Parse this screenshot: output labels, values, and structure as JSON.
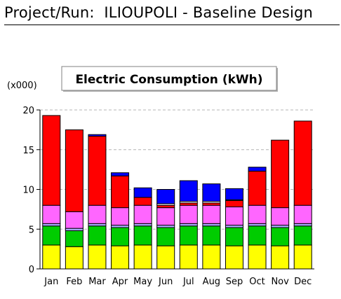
{
  "header": {
    "title": "Project/Run:  ILIOUPOLI - Baseline Design"
  },
  "chart_data": {
    "type": "bar",
    "stacked": true,
    "title": "Electric Consumption (kWh)",
    "unit_label": "(x000)",
    "xlabel": "",
    "ylabel": "",
    "ylim": [
      0,
      20
    ],
    "yticks": [
      0,
      5,
      10,
      15,
      20
    ],
    "grid": "horizontal dashed",
    "legend": "none",
    "categories": [
      "Jan",
      "Feb",
      "Mar",
      "Apr",
      "May",
      "Jun",
      "Jul",
      "Aug",
      "Sep",
      "Oct",
      "Nov",
      "Dec"
    ],
    "series": [
      {
        "color": "#ffff00",
        "values": [
          3.0,
          2.8,
          3.0,
          2.9,
          3.0,
          2.9,
          3.0,
          3.0,
          2.9,
          3.0,
          2.9,
          3.0
        ]
      },
      {
        "color": "#00cc00",
        "values": [
          2.4,
          2.0,
          2.4,
          2.3,
          2.4,
          2.3,
          2.4,
          2.4,
          2.3,
          2.4,
          2.3,
          2.4
        ]
      },
      {
        "color": "#aaaaff",
        "values": [
          0.3,
          0.3,
          0.3,
          0.3,
          0.3,
          0.3,
          0.3,
          0.3,
          0.3,
          0.3,
          0.3,
          0.3
        ]
      },
      {
        "color": "#ff66ff",
        "values": [
          2.3,
          2.1,
          2.3,
          2.2,
          2.3,
          2.2,
          2.3,
          2.3,
          2.3,
          2.3,
          2.2,
          2.3
        ]
      },
      {
        "color": "#ff0000",
        "values": [
          11.3,
          10.3,
          8.7,
          4.0,
          1.0,
          0.3,
          0.3,
          0.3,
          0.8,
          4.3,
          8.5,
          10.6
        ]
      },
      {
        "color": "#ffffff",
        "values": [
          0,
          0,
          0,
          0,
          0,
          0.2,
          0.2,
          0.2,
          0.1,
          0,
          0,
          0
        ]
      },
      {
        "color": "#0000ff",
        "values": [
          0,
          0,
          0.2,
          0.4,
          1.2,
          1.8,
          2.6,
          2.2,
          1.4,
          0.5,
          0,
          0
        ]
      }
    ]
  }
}
